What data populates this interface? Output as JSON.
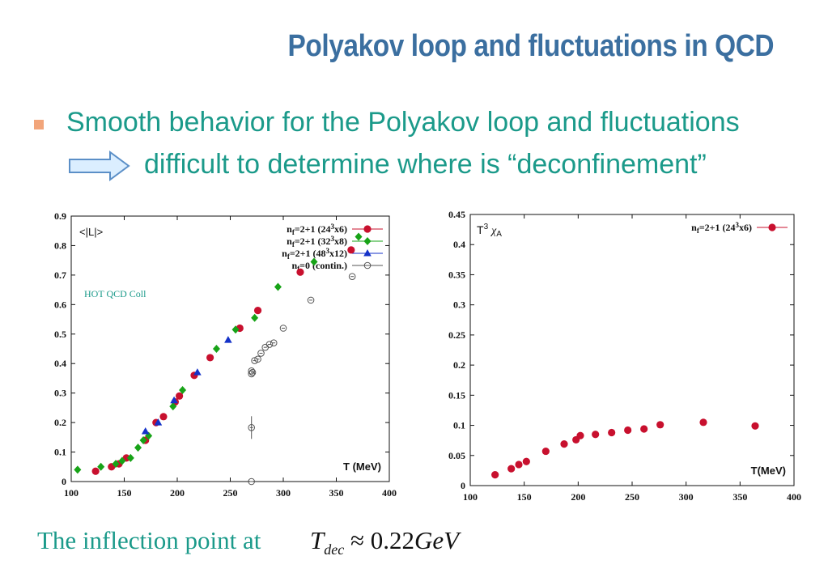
{
  "slide": {
    "title": "Polyakov loop and fluctuations in QCD",
    "bullet_line1": "Smooth behavior for the Polyakov loop and fluctuations",
    "bullet_line2": "difficult to  determine where is “deconfinement”",
    "footer_text": "The inflection point at",
    "formula_T": "T",
    "formula_sub": "dec",
    "formula_rest": "≈ 0.22",
    "formula_unit": "GeV",
    "colors": {
      "title": "#3b6fa0",
      "text": "#1b9a8a",
      "bullet": "#f2a57a",
      "arrow_fill": "#dbeeff",
      "arrow_stroke": "#5b8fc7"
    }
  },
  "chart_data": [
    {
      "type": "scatter",
      "ylabel": "<|L|>",
      "xlabel": "T (MeV)",
      "annotation": "HOT QCD Coll",
      "xlim": [
        100,
        400
      ],
      "ylim": [
        0,
        0.9
      ],
      "xticks": [
        100,
        150,
        200,
        250,
        300,
        350,
        400
      ],
      "yticks": [
        0,
        0.1,
        0.2,
        0.3,
        0.4,
        0.5,
        0.6,
        0.7,
        0.8,
        0.9
      ],
      "ytick_labels": [
        "0",
        "0.1",
        "0.2",
        "0.3",
        "0.4",
        "0.5",
        "0.6",
        "0.7",
        "0.8",
        "0.9"
      ],
      "legend_position": "top-right",
      "series": [
        {
          "name": "n_f=2+1 (24³x6)",
          "legend_main": "n",
          "legend_sub": "f",
          "legend_rest": "=2+1 (24",
          "legend_sup": "3",
          "legend_tail": "x6)",
          "marker": "circle",
          "color": "#c8102e",
          "x": [
            123,
            138,
            145,
            152,
            170,
            180,
            187,
            198,
            202,
            216,
            231,
            259,
            276,
            316,
            364
          ],
          "y": [
            0.035,
            0.05,
            0.06,
            0.08,
            0.14,
            0.2,
            0.22,
            0.27,
            0.29,
            0.36,
            0.42,
            0.52,
            0.58,
            0.71,
            0.785
          ]
        },
        {
          "name": "n_f=2+1 (32³x8)",
          "legend_main": "n",
          "legend_sub": "f",
          "legend_rest": "=2+1 (32",
          "legend_sup": "3",
          "legend_tail": "x8)",
          "marker": "diamond",
          "color": "#17a317",
          "x": [
            106,
            128,
            142,
            148,
            156,
            163,
            168,
            173,
            196,
            205,
            237,
            255,
            273,
            295,
            329,
            371
          ],
          "y": [
            0.04,
            0.05,
            0.06,
            0.07,
            0.08,
            0.115,
            0.14,
            0.155,
            0.255,
            0.31,
            0.45,
            0.515,
            0.555,
            0.66,
            0.745,
            0.83
          ]
        },
        {
          "name": "n_f=2+1 (48³x12)",
          "legend_main": "n",
          "legend_sub": "f",
          "legend_rest": "=2+1 (48",
          "legend_sup": "3",
          "legend_tail": "x12)",
          "marker": "triangle",
          "color": "#1432c8",
          "x": [
            170,
            182,
            197,
            219,
            248
          ],
          "y": [
            0.17,
            0.2,
            0.275,
            0.37,
            0.48
          ]
        },
        {
          "name": "n_f=0 (contin.)",
          "legend_main": "n",
          "legend_sub": "f",
          "legend_rest": "=0 (contin.)",
          "legend_sup": "",
          "legend_tail": "",
          "marker": "open-circle",
          "color": "#555555",
          "x": [
            270,
            270,
            270,
            270,
            271,
            273,
            276,
            279,
            283,
            287,
            291,
            300,
            326,
            365
          ],
          "y": [
            0.0,
            0.183,
            0.365,
            0.375,
            0.37,
            0.41,
            0.415,
            0.435,
            0.455,
            0.465,
            0.47,
            0.52,
            0.615,
            0.695
          ]
        }
      ]
    },
    {
      "type": "scatter",
      "ylabel": "T³ χ_A",
      "ylabel_main": "T",
      "ylabel_sup": "3",
      "ylabel_chi": "χ",
      "ylabel_sub": "A",
      "xlabel": "T(MeV)",
      "xlim": [
        100,
        400
      ],
      "ylim": [
        0,
        0.45
      ],
      "xticks": [
        100,
        150,
        200,
        250,
        300,
        350,
        400
      ],
      "yticks": [
        0,
        0.05,
        0.1,
        0.15,
        0.2,
        0.25,
        0.3,
        0.35,
        0.4,
        0.45
      ],
      "ytick_labels": [
        "0",
        "0.05",
        "0.1",
        "0.15",
        "0.2",
        "0.25",
        "0.3",
        "0.35",
        "0.4",
        "0.45"
      ],
      "legend_position": "top-right",
      "series": [
        {
          "name": "n_f=2+1 (24³x6)",
          "legend_main": "n",
          "legend_sub": "f",
          "legend_rest": "=2+1 (24",
          "legend_sup": "3",
          "legend_tail": "x6)",
          "marker": "circle",
          "color": "#c8102e",
          "x": [
            123,
            138,
            145,
            152,
            170,
            187,
            198,
            202,
            216,
            231,
            246,
            261,
            276,
            316,
            364
          ],
          "y": [
            0.018,
            0.028,
            0.035,
            0.04,
            0.057,
            0.069,
            0.076,
            0.083,
            0.085,
            0.088,
            0.092,
            0.094,
            0.101,
            0.105,
            0.099
          ]
        }
      ]
    }
  ]
}
